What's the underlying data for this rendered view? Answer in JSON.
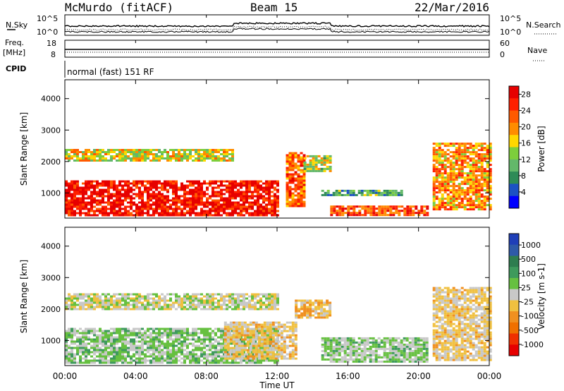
{
  "header": {
    "station": "McMurdo (fitACF)",
    "beam": "Beam 15",
    "date": "22/Mar/2016"
  },
  "strip_labels": {
    "nsky": "N.Sky",
    "freq_line1": "Freq.",
    "freq_line2": "[MHz]",
    "cpid": "CPID",
    "nsearch": "N.Search",
    "nave": "Nave",
    "cpid_value": "normal (fast) 151 RF"
  },
  "strip_ticks": {
    "noise_left_top": "10^5",
    "noise_left_bottom": "10^0",
    "noise_right_top": "10^5",
    "noise_right_bottom": "10^0",
    "freq_top": "18",
    "freq_bottom": "8",
    "nave_top": "60",
    "nave_bottom": "0"
  },
  "colors": {
    "power": [
      "#0000ff",
      "#1c52c4",
      "#2e8b57",
      "#63b86a",
      "#7dce3c",
      "#ffd700",
      "#ff8c00",
      "#ff5a00",
      "#ff2000",
      "#e60000"
    ],
    "velocity": [
      "#1f3fb8",
      "#2e5aa8",
      "#2e7d4f",
      "#3e9a5c",
      "#66c040",
      "#c8c8c8",
      "#f0c040",
      "#f09020",
      "#f07000",
      "#f03000",
      "#e60000"
    ]
  },
  "chart_data": [
    {
      "type": "heatmap",
      "title": "",
      "xlabel": "Time UT",
      "ylabel": "Slant Range [km]",
      "x_ticks": [
        "00:00",
        "04:00",
        "08:00",
        "12:00",
        "16:00",
        "20:00",
        "00:00"
      ],
      "y_ticks": [
        "1000",
        "2000",
        "3000",
        "4000"
      ],
      "ylim": [
        200,
        4600
      ],
      "xlim_hours": [
        0,
        24
      ],
      "colorbar": {
        "label": "Power [dB]",
        "ticks": [
          "4",
          "8",
          "12",
          "16",
          "20",
          "24",
          "28"
        ],
        "range": [
          0,
          30
        ]
      },
      "regions": [
        {
          "t": [
            0.0,
            12.0
          ],
          "r": [
            300,
            1400
          ],
          "value": 28
        },
        {
          "t": [
            12.5,
            13.5
          ],
          "r": [
            600,
            2300
          ],
          "value": 22
        },
        {
          "t": [
            0.0,
            9.5
          ],
          "r": [
            2000,
            2400
          ],
          "value": 16
        },
        {
          "t": [
            13.5,
            15.0
          ],
          "r": [
            1700,
            2200
          ],
          "value": 14
        },
        {
          "t": [
            14.5,
            19.0
          ],
          "r": [
            900,
            1100
          ],
          "value": 10
        },
        {
          "t": [
            15.0,
            20.5
          ],
          "r": [
            300,
            600
          ],
          "value": 24
        },
        {
          "t": [
            20.8,
            24.0
          ],
          "r": [
            500,
            2600
          ],
          "value": 20
        }
      ]
    },
    {
      "type": "heatmap",
      "title": "",
      "xlabel": "Time UT",
      "ylabel": "Slant Range [km]",
      "x_ticks": [
        "00:00",
        "04:00",
        "08:00",
        "12:00",
        "16:00",
        "20:00",
        "00:00"
      ],
      "y_ticks": [
        "1000",
        "2000",
        "3000",
        "4000"
      ],
      "ylim": [
        200,
        4600
      ],
      "xlim_hours": [
        0,
        24
      ],
      "colorbar": {
        "label": "Velocity [m s-1]",
        "ticks": [
          "1000",
          "500",
          "100",
          "25",
          "-25",
          "-100",
          "-500",
          "-1000"
        ],
        "range": [
          -1000,
          1000
        ]
      },
      "regions": [
        {
          "t": [
            0.0,
            12.0
          ],
          "r": [
            300,
            1400
          ],
          "value": 150
        },
        {
          "t": [
            9.0,
            13.0
          ],
          "r": [
            400,
            1600
          ],
          "value": -150
        },
        {
          "t": [
            13.0,
            15.0
          ],
          "r": [
            1700,
            2300
          ],
          "value": -200
        },
        {
          "t": [
            0.0,
            12.0
          ],
          "r": [
            2000,
            2500
          ],
          "value": 0
        },
        {
          "t": [
            14.5,
            20.5
          ],
          "r": [
            300,
            1100
          ],
          "value": 120
        },
        {
          "t": [
            20.8,
            24.0
          ],
          "r": [
            400,
            2700
          ],
          "value": -120
        }
      ]
    }
  ]
}
